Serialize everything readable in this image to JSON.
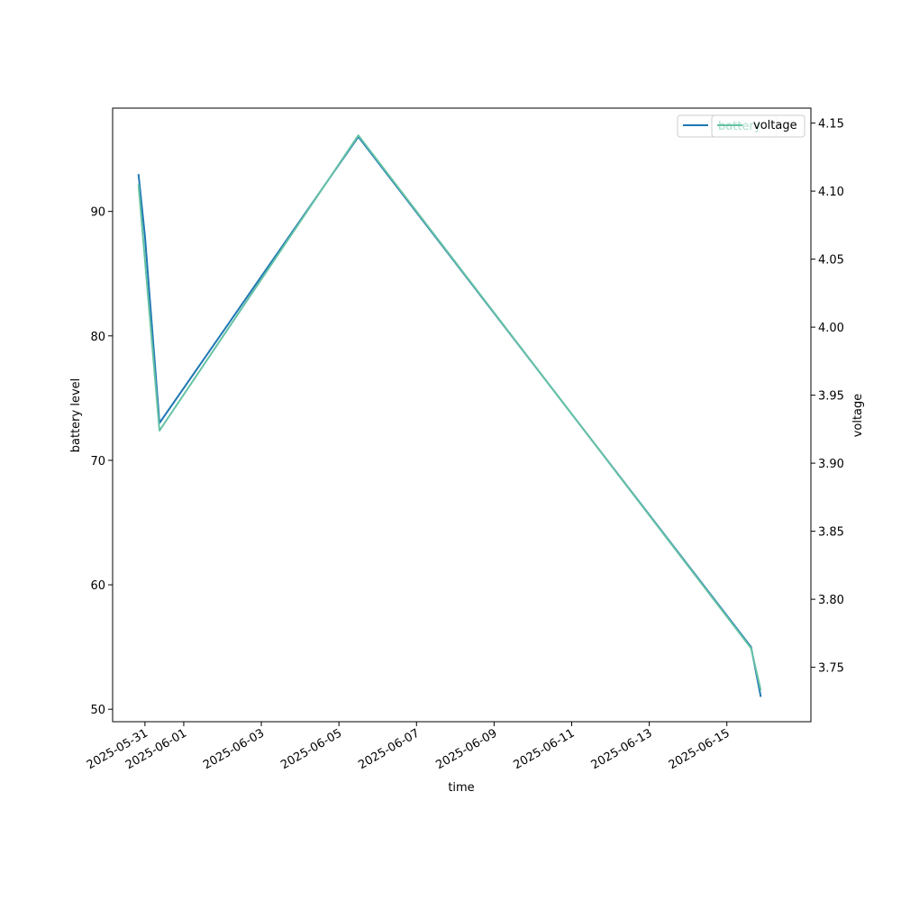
{
  "chart_data": {
    "type": "line",
    "xlabel": "time",
    "ylabel_left": "battery level",
    "ylabel_right": "voltage",
    "x_ticks": [
      "2025-05-31",
      "2025-06-01",
      "2025-06-03",
      "2025-06-05",
      "2025-06-07",
      "2025-06-09",
      "2025-06-11",
      "2025-06-13",
      "2025-06-15"
    ],
    "xlim": [
      "2025-05-30T04:00",
      "2025-06-17T04:00"
    ],
    "ylim_left": [
      49,
      98.3
    ],
    "ylim_right": [
      3.71,
      4.161
    ],
    "y_ticks_left": [
      50,
      60,
      70,
      80,
      90
    ],
    "y_ticks_right": [
      3.75,
      3.8,
      3.85,
      3.9,
      3.95,
      4.0,
      4.05,
      4.1,
      4.15
    ],
    "legend": {
      "placement": "upper right",
      "overlapping_boxes": true
    },
    "series": [
      {
        "name": "battery",
        "axis": "left",
        "color": "#1f77b4",
        "points": [
          {
            "x": "2025-05-30T20:00",
            "y": 93
          },
          {
            "x": "2025-05-31T00:00",
            "y": 88
          },
          {
            "x": "2025-05-31T09:00",
            "y": 73
          },
          {
            "x": "2025-06-05T12:00",
            "y": 96
          },
          {
            "x": "2025-06-15T15:00",
            "y": 55
          },
          {
            "x": "2025-06-15T21:00",
            "y": 51
          }
        ]
      },
      {
        "name": "voltage",
        "axis": "right",
        "color": "#66c2a5",
        "points": [
          {
            "x": "2025-05-30T20:00",
            "y": 4.105
          },
          {
            "x": "2025-05-31T09:00",
            "y": 3.924
          },
          {
            "x": "2025-06-05T12:00",
            "y": 4.141
          },
          {
            "x": "2025-06-15T15:00",
            "y": 3.764
          },
          {
            "x": "2025-06-15T21:00",
            "y": 3.733
          }
        ]
      }
    ]
  }
}
